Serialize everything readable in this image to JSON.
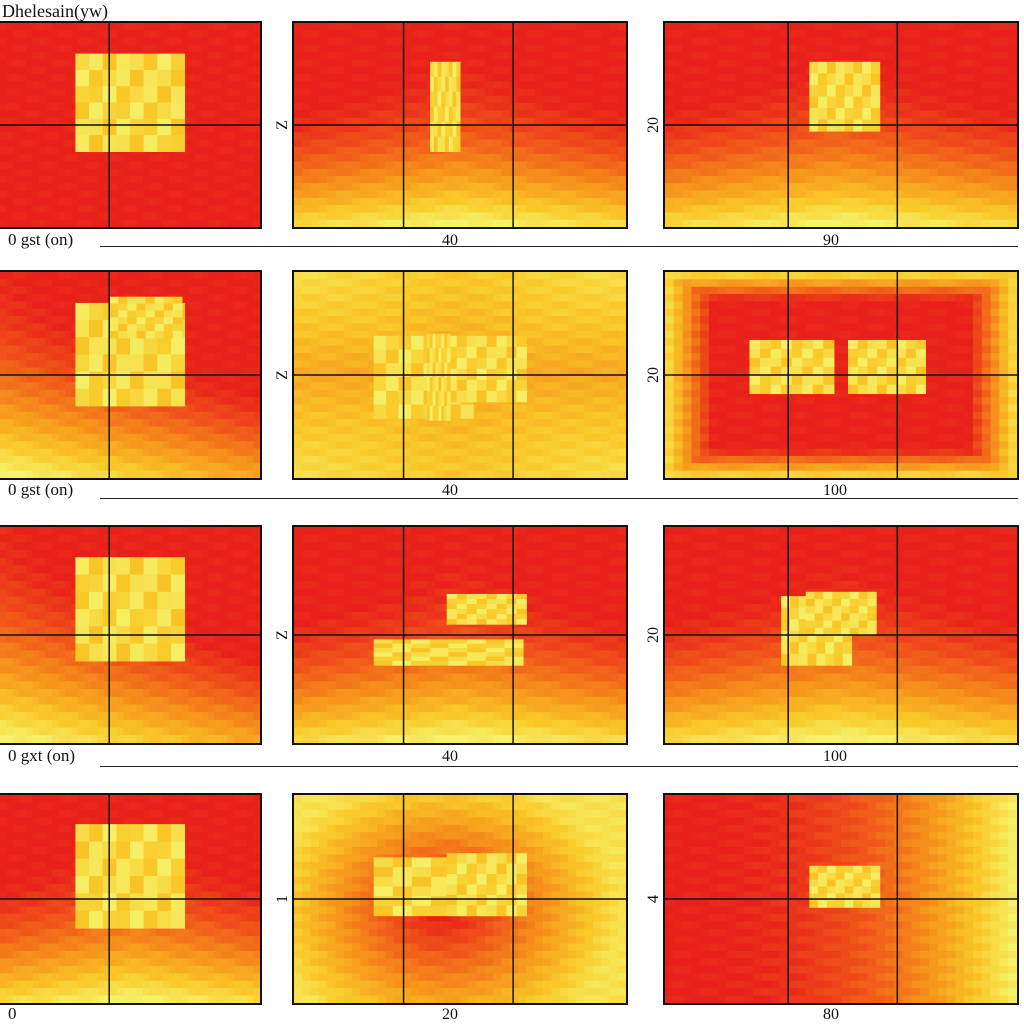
{
  "title": "Dhelesain(yw)",
  "chart_data": {
    "type": "heatmap",
    "title": "Dhelesain(yw)",
    "colormap": [
      "#e8201a",
      "#f0571a",
      "#f6941c",
      "#f9c928",
      "#f6f26a"
    ],
    "rows": [
      {
        "row_label": "0  gst (on)",
        "panels": [
          {
            "ylabel": "",
            "xlabel": "",
            "background": "red",
            "gradient": "none",
            "hot_blocks": 1
          },
          {
            "ylabel": "Z",
            "xlabel": "40",
            "background": "red",
            "gradient": "bottom",
            "hot_blocks": 1
          },
          {
            "ylabel": "20",
            "xlabel": "90",
            "background": "red",
            "gradient": "bottom",
            "hot_blocks": 1
          }
        ]
      },
      {
        "row_label": "0  gst (on)",
        "panels": [
          {
            "ylabel": "",
            "xlabel": "",
            "background": "red",
            "gradient": "bottom-left",
            "hot_blocks": 2
          },
          {
            "ylabel": "Z",
            "xlabel": "40",
            "background": "yellow",
            "gradient": "edges",
            "hot_blocks": 3
          },
          {
            "ylabel": "20",
            "xlabel": "100",
            "background": "red",
            "gradient": "edges",
            "hot_blocks": 2
          }
        ]
      },
      {
        "row_label": "0  gxt (on)",
        "panels": [
          {
            "ylabel": "",
            "xlabel": "",
            "background": "red",
            "gradient": "bottom-left",
            "hot_blocks": 1
          },
          {
            "ylabel": "Z",
            "xlabel": "40",
            "background": "red",
            "gradient": "bottom",
            "hot_blocks": 2
          },
          {
            "ylabel": "20",
            "xlabel": "100",
            "background": "red",
            "gradient": "bottom",
            "hot_blocks": 2
          }
        ]
      },
      {
        "row_label": "0",
        "panels": [
          {
            "ylabel": "",
            "xlabel": "",
            "background": "red",
            "gradient": "bottom",
            "hot_blocks": 1
          },
          {
            "ylabel": "1",
            "xlabel": "20",
            "background": "yellow",
            "gradient": "center-red",
            "hot_blocks": 2
          },
          {
            "ylabel": "4",
            "xlabel": "80",
            "background": "red",
            "gradient": "right",
            "hot_blocks": 1
          }
        ]
      }
    ]
  }
}
